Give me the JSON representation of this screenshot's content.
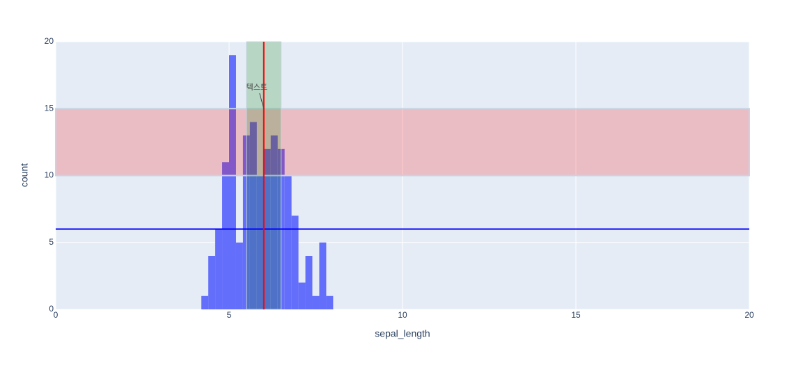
{
  "chart_data": {
    "type": "histogram",
    "x_label": "sepal_length",
    "y_label": "count",
    "bins": [
      4.2,
      4.4,
      4.6,
      4.8,
      5.0,
      5.2,
      5.4,
      5.6,
      5.8,
      6.0,
      6.2,
      6.4,
      6.6,
      6.8,
      7.0,
      7.2,
      7.4,
      7.6,
      7.8,
      8.0
    ],
    "values": [
      1,
      4,
      6,
      11,
      19,
      5,
      13,
      14,
      10,
      12,
      13,
      12,
      10,
      7,
      2,
      4,
      1,
      5,
      1
    ],
    "color": "#636efa",
    "xlim": [
      0,
      20
    ],
    "xticks": [
      0,
      5,
      10,
      15,
      20
    ],
    "ylim": [
      0,
      20
    ],
    "yticks": [
      0,
      5,
      10,
      15,
      20
    ],
    "grid": true,
    "hrect": {
      "y0": 10,
      "y1": 15,
      "color": "red",
      "opacity": 0.2
    },
    "vrect": {
      "x0": 5.5,
      "x1": 6.5,
      "color": "green",
      "opacity": 0.2
    },
    "hline": {
      "y": 6,
      "color": "blue"
    },
    "vline": {
      "x": 6,
      "color": "red"
    },
    "annotation": {
      "text": "텍스트",
      "x": 6,
      "y": 15
    }
  }
}
